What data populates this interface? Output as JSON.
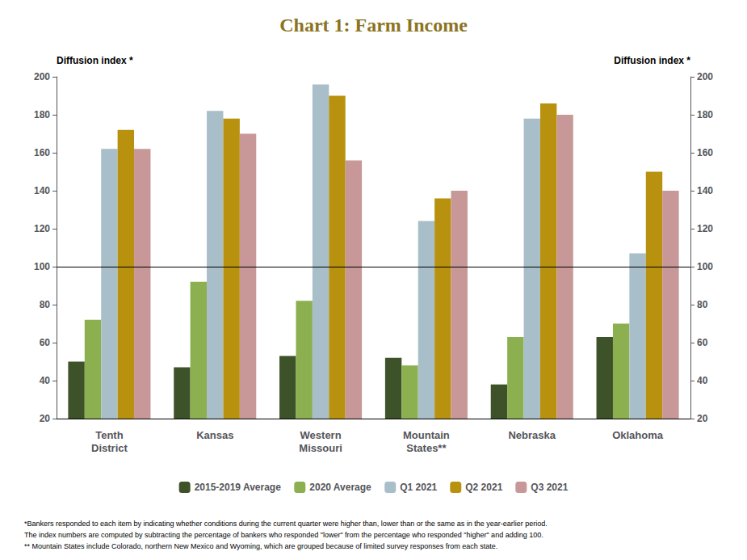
{
  "chart_data": {
    "type": "bar",
    "title": "Chart 1: Farm Income",
    "ylabel": "Diffusion index *",
    "y2label": "Diffusion index *",
    "categories": [
      "Tenth\nDistrict",
      "Kansas",
      "Western\nMissouri",
      "Mountain\nStates**",
      "Nebraska",
      "Oklahoma"
    ],
    "series": [
      {
        "name": "2015-2019 Average",
        "color": "#3D5229",
        "values": [
          50,
          47,
          53,
          52,
          38,
          63
        ]
      },
      {
        "name": "2020 Average",
        "color": "#8CB050",
        "values": [
          72,
          92,
          82,
          48,
          63,
          70
        ]
      },
      {
        "name": "Q1 2021",
        "color": "#A8BEC8",
        "values": [
          162,
          182,
          196,
          124,
          178,
          107
        ]
      },
      {
        "name": "Q2 2021",
        "color": "#B8920E",
        "values": [
          172,
          178,
          190,
          136,
          186,
          150
        ]
      },
      {
        "name": "Q3 2021",
        "color": "#C89898",
        "values": [
          162,
          170,
          156,
          140,
          180,
          140
        ]
      }
    ],
    "baseline": 100,
    "ylim": [
      20,
      200
    ],
    "yticks": [
      20,
      40,
      60,
      80,
      100,
      120,
      140,
      160,
      180,
      200
    ],
    "y2lim": [
      20,
      200
    ],
    "y2ticks": [
      20,
      40,
      60,
      80,
      100,
      120,
      140,
      160,
      180,
      200
    ],
    "grid": false,
    "legend": "bottom",
    "footnotes": [
      "*Bankers responded to each item by indicating whether conditions during the current quarter were higher than, lower than or the same as in the year-earlier period.",
      "The index numbers are computed by subtracting the percentage of bankers who responded \"lower\" from the percentage who responded \"higher\" and adding 100.",
      "** Mountain States include Colorado, northern New Mexico and Wyoming, which are grouped because of limited survey responses from each state."
    ]
  }
}
